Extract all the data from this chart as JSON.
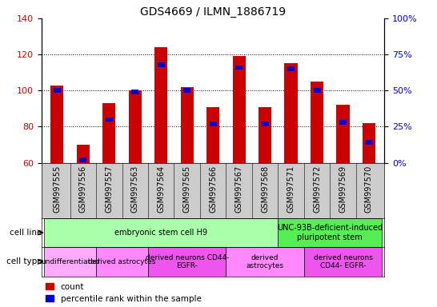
{
  "title": "GDS4669 / ILMN_1886719",
  "samples": [
    "GSM997555",
    "GSM997556",
    "GSM997557",
    "GSM997563",
    "GSM997564",
    "GSM997565",
    "GSM997566",
    "GSM997567",
    "GSM997568",
    "GSM997571",
    "GSM997572",
    "GSM997569",
    "GSM997570"
  ],
  "count_values": [
    103,
    70,
    93,
    100,
    124,
    102,
    91,
    119,
    91,
    115,
    105,
    92,
    82
  ],
  "percentile_values": [
    50,
    2,
    30,
    49,
    68,
    50,
    27,
    66,
    27,
    65,
    50,
    28,
    14
  ],
  "ylim_left": [
    60,
    140
  ],
  "ylim_right": [
    0,
    100
  ],
  "yticks_left": [
    60,
    80,
    100,
    120,
    140
  ],
  "yticks_right": [
    0,
    25,
    50,
    75,
    100
  ],
  "count_color": "#cc0000",
  "percentile_color": "#0000cc",
  "cell_line_groups": [
    {
      "label": "embryonic stem cell H9",
      "start": 0,
      "end": 9,
      "color": "#aaffaa"
    },
    {
      "label": "UNC-93B-deficient-induced\npluripotent stem",
      "start": 9,
      "end": 13,
      "color": "#55ee55"
    }
  ],
  "cell_type_groups": [
    {
      "label": "undifferentiated",
      "start": 0,
      "end": 2,
      "color": "#ffaaff"
    },
    {
      "label": "derived astrocytes",
      "start": 2,
      "end": 4,
      "color": "#ff88ff"
    },
    {
      "label": "derived neurons CD44-\nEGFR-",
      "start": 4,
      "end": 7,
      "color": "#ee55ee"
    },
    {
      "label": "derived\nastrocytes",
      "start": 7,
      "end": 10,
      "color": "#ff88ff"
    },
    {
      "label": "derived neurons\nCD44- EGFR-",
      "start": 10,
      "end": 13,
      "color": "#ee55ee"
    }
  ],
  "legend_count_label": "count",
  "legend_pct_label": "percentile rank within the sample",
  "cell_line_label": "cell line",
  "cell_type_label": "cell type",
  "xtick_bg": "#cccccc",
  "title_fontsize": 10,
  "tick_fontsize": 7,
  "annotation_fontsize": 7
}
